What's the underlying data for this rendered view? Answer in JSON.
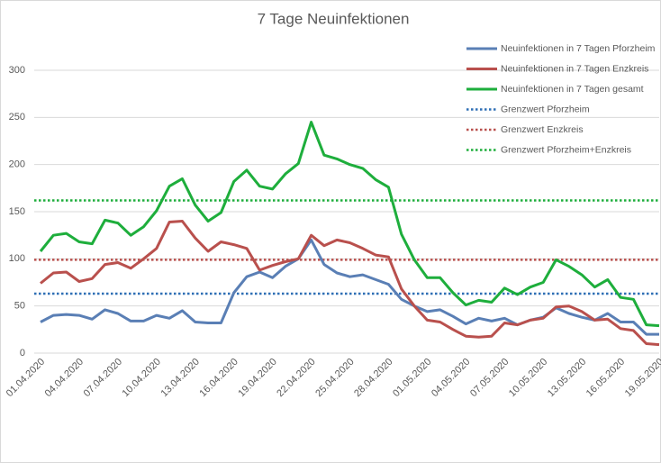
{
  "chart_data": {
    "type": "line",
    "title": "7 Tage Neuinfektionen",
    "categories": [
      "01.04.2020",
      null,
      null,
      "04.04.2020",
      null,
      null,
      "07.04.2020",
      null,
      null,
      "10.04.2020",
      null,
      null,
      "13.04.2020",
      null,
      null,
      "16.04.2020",
      null,
      null,
      "19.04.2020",
      null,
      null,
      "22.04.2020",
      null,
      null,
      "25.04.2020",
      null,
      null,
      "28.04.2020",
      null,
      null,
      "01.05.2020",
      null,
      null,
      "04.05.2020",
      null,
      null,
      "07.05.2020",
      null,
      null,
      "10.05.2020",
      null,
      null,
      "13.05.2020",
      null,
      null,
      "16.05.2020",
      null,
      null,
      "19.05.2020"
    ],
    "series": [
      {
        "name": "Neuinfektionen in 7 Tagen Pforzheim",
        "color": "#5a7fb5",
        "values": [
          33,
          40,
          41,
          40,
          36,
          46,
          42,
          34,
          34,
          40,
          37,
          45,
          33,
          32,
          32,
          64,
          81,
          86,
          80,
          92,
          100,
          120,
          94,
          85,
          81,
          83,
          78,
          73,
          57,
          50,
          44,
          46,
          39,
          31,
          37,
          34,
          37,
          30,
          35,
          38,
          48,
          42,
          38,
          35,
          42,
          33,
          33,
          20,
          20
        ]
      },
      {
        "name": "Neuinfektionen in 7 Tagen Enzkreis",
        "color": "#b9504d",
        "values": [
          74,
          85,
          86,
          76,
          79,
          94,
          96,
          90,
          100,
          111,
          139,
          140,
          122,
          108,
          118,
          115,
          111,
          88,
          93,
          97,
          100,
          125,
          114,
          120,
          117,
          111,
          104,
          102,
          68,
          50,
          35,
          33,
          25,
          18,
          17,
          18,
          32,
          30,
          35,
          37,
          49,
          50,
          44,
          35,
          36,
          26,
          24,
          10,
          9
        ]
      },
      {
        "name": "Neuinfektionen in 7 Tagen gesamt",
        "color": "#1eae3c",
        "values": [
          108,
          125,
          127,
          118,
          116,
          141,
          138,
          125,
          134,
          151,
          177,
          185,
          157,
          140,
          149,
          182,
          194,
          177,
          174,
          190,
          201,
          245,
          210,
          206,
          200,
          196,
          184,
          176,
          126,
          99,
          80,
          80,
          64,
          51,
          56,
          54,
          69,
          62,
          70,
          75,
          99,
          92,
          83,
          70,
          78,
          59,
          57,
          30,
          29
        ]
      }
    ],
    "thresholds": [
      {
        "name": "Grenzwert Pforzheim",
        "color": "#2e6fb5",
        "value": 63
      },
      {
        "name": "Grenzwert Enzkreis",
        "color": "#b9504d",
        "value": 99
      },
      {
        "name": "Grenzwert Pforzheim+Enzkreis",
        "color": "#1eae3c",
        "value": 162
      }
    ],
    "ylim": [
      0,
      300
    ],
    "yticks": [
      0,
      50,
      100,
      150,
      200,
      250,
      300
    ],
    "grid": true
  }
}
